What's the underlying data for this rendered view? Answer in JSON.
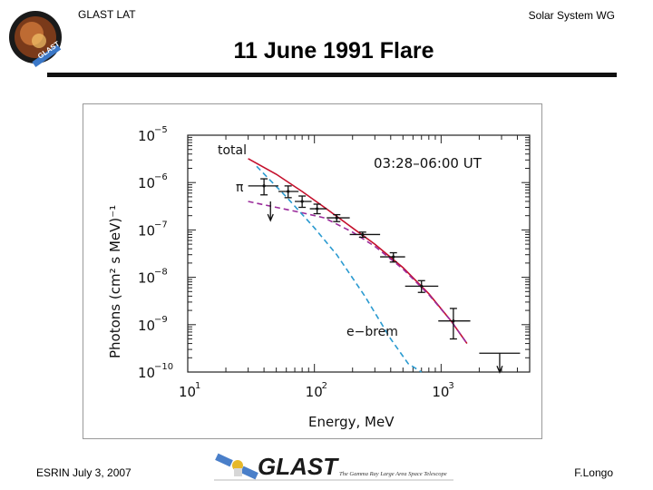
{
  "header": {
    "left": "GLAST LAT",
    "right": "Solar System WG",
    "title": "11 June 1991 Flare"
  },
  "logo_text": "GLAST",
  "footer": {
    "left": "ESRIN July 3, 2007",
    "right": "F.Longo",
    "logo_word": "GLAST",
    "logo_tagline": "The Gamma Ray Large Area Space Telescope"
  },
  "colors": {
    "total_curve": "#c4102c",
    "pion_curve": "#9a2a9a",
    "ebrem_curve": "#2a9ad0",
    "title_rule": "#111111"
  },
  "chart_data": {
    "type": "scatter",
    "time_label": "03:28–06:00 UT",
    "xlabel": "Energy, MeV",
    "ylabel": "Photons (cm² s MeV)⁻¹",
    "xscale": "log",
    "yscale": "log",
    "xlim": [
      10,
      5000
    ],
    "ylim": [
      1e-10,
      1e-05
    ],
    "x_ticks": [
      {
        "value": 10,
        "base": "10",
        "exp": "1"
      },
      {
        "value": 100,
        "base": "10",
        "exp": "2"
      },
      {
        "value": 1000,
        "base": "10",
        "exp": "3"
      }
    ],
    "y_ticks": [
      {
        "value": 1e-05,
        "base": "10",
        "exp": "−5"
      },
      {
        "value": 1e-06,
        "base": "10",
        "exp": "−6"
      },
      {
        "value": 1e-07,
        "base": "10",
        "exp": "−7"
      },
      {
        "value": 1e-08,
        "base": "10",
        "exp": "−8"
      },
      {
        "value": 1e-09,
        "base": "10",
        "exp": "−9"
      },
      {
        "value": 1e-10,
        "base": "10",
        "exp": "−10"
      }
    ],
    "points": [
      {
        "x": 40,
        "y": 8.5e-07,
        "xerr": [
          30,
          52
        ],
        "yerr": [
          5.5e-07,
          1.2e-06
        ]
      },
      {
        "x": 62,
        "y": 6.5e-07,
        "xerr": [
          52,
          75
        ],
        "yerr": [
          4.8e-07,
          8.5e-07
        ]
      },
      {
        "x": 80,
        "y": 4e-07,
        "xerr": [
          70,
          95
        ],
        "yerr": [
          3e-07,
          5.2e-07
        ]
      },
      {
        "x": 105,
        "y": 2.8e-07,
        "xerr": [
          92,
          125
        ],
        "yerr": [
          2.2e-07,
          3.5e-07
        ]
      },
      {
        "x": 150,
        "y": 1.8e-07,
        "xerr": [
          125,
          190
        ],
        "yerr": [
          1.5e-07,
          2.1e-07
        ]
      },
      {
        "x": 240,
        "y": 8e-08,
        "xerr": [
          190,
          330
        ],
        "yerr": [
          7e-08,
          9e-08
        ]
      },
      {
        "x": 420,
        "y": 2.7e-08,
        "xerr": [
          330,
          520
        ],
        "yerr": [
          2.1e-08,
          3.3e-08
        ]
      },
      {
        "x": 700,
        "y": 6.5e-09,
        "xerr": [
          520,
          950
        ],
        "yerr": [
          4.8e-09,
          8.5e-09
        ]
      },
      {
        "x": 1250,
        "y": 1.2e-09,
        "xerr": [
          950,
          1700
        ],
        "yerr": [
          5e-10,
          2.2e-09
        ]
      }
    ],
    "upper_limits": [
      {
        "x": 45,
        "y": 4e-07
      },
      {
        "x": 2900,
        "y": 2.5e-10,
        "xerr": [
          2000,
          4200
        ]
      }
    ],
    "series": [
      {
        "name": "total",
        "style": "solid",
        "x": [
          30,
          50,
          80,
          120,
          200,
          300,
          500,
          800,
          1200,
          1600
        ],
        "y": [
          3.2e-06,
          1.5e-06,
          6.5e-07,
          3e-07,
          1.1e-07,
          5e-08,
          1.6e-08,
          4.5e-09,
          1.2e-09,
          4e-10
        ]
      },
      {
        "name": "π",
        "style": "dashed",
        "x": [
          30,
          50,
          80,
          120,
          200,
          300,
          500,
          800,
          1200,
          1600
        ],
        "y": [
          4e-07,
          3e-07,
          2.3e-07,
          1.8e-07,
          9e-08,
          4.5e-08,
          1.5e-08,
          4.3e-09,
          1.2e-09,
          4e-10
        ]
      },
      {
        "name": "e−brem",
        "style": "dashed",
        "x": [
          35,
          60,
          100,
          150,
          250,
          400,
          550,
          700
        ],
        "y": [
          2.2e-06,
          5e-07,
          1.1e-07,
          3e-08,
          4e-09,
          5e-10,
          1.5e-10,
          1e-10
        ]
      }
    ]
  }
}
